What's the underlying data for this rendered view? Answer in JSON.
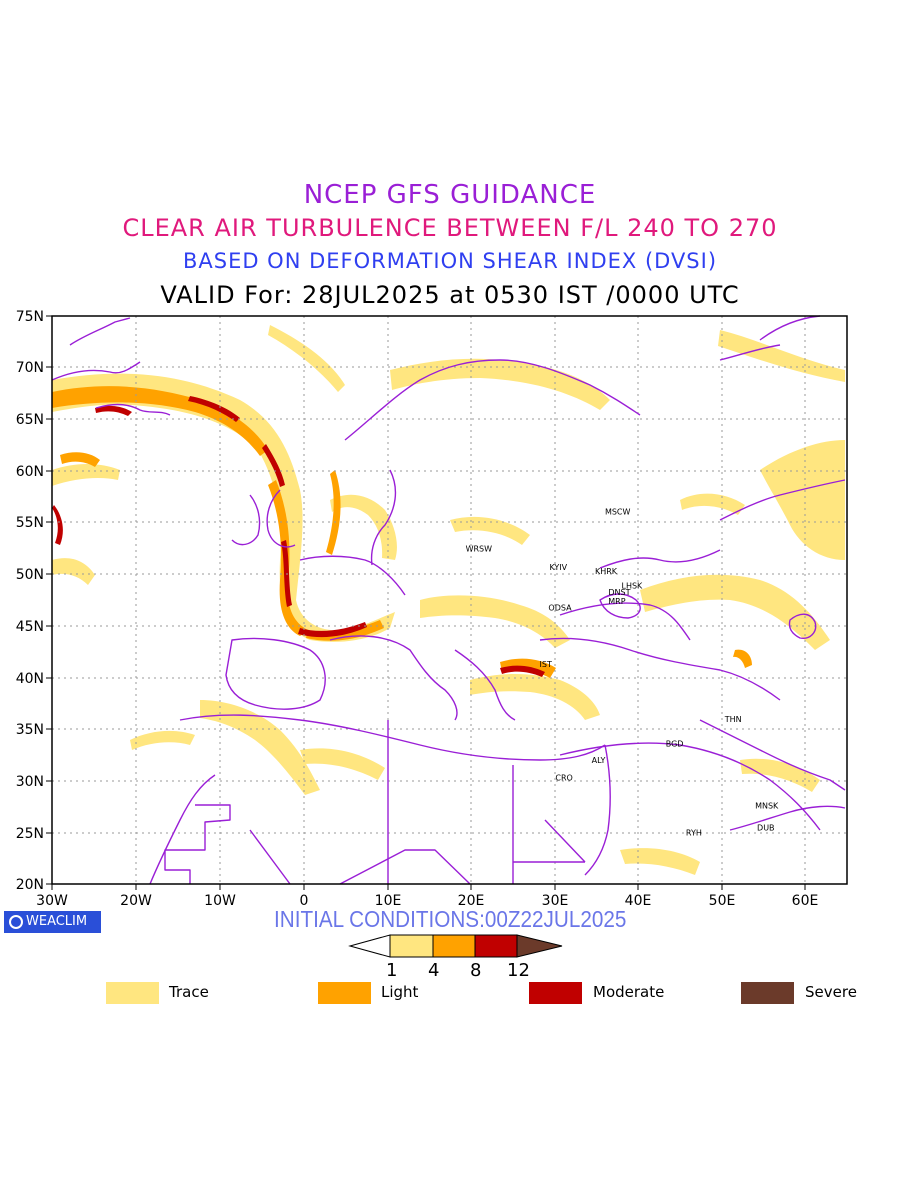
{
  "titles": {
    "line1": "NCEP GFS GUIDANCE",
    "line2": "CLEAR AIR TURBULENCE BETWEEN F/L 240 TO 270",
    "line3": "BASED ON DEFORMATION SHEAR INDEX (DVSI)",
    "line4": "VALID For: 28JUL2025 at 0530 IST /0000 UTC"
  },
  "map": {
    "lon_range": [
      -30,
      65
    ],
    "lat_range": [
      20,
      75
    ],
    "x_ticks": [
      "30W",
      "20W",
      "10W",
      "0",
      "10E",
      "20E",
      "30E",
      "40E",
      "50E",
      "60E"
    ],
    "y_ticks": [
      "75N",
      "70N",
      "65N",
      "60N",
      "55N",
      "50N",
      "45N",
      "40N",
      "35N",
      "30N",
      "25N",
      "20N"
    ],
    "gridlines": true,
    "cities": [
      {
        "code": "MSCW",
        "lon": 37.6,
        "lat": 55.8
      },
      {
        "code": "WRSW",
        "lon": 21.0,
        "lat": 52.2
      },
      {
        "code": "KYIV",
        "lon": 30.5,
        "lat": 50.4
      },
      {
        "code": "KHRK",
        "lon": 36.2,
        "lat": 50.0
      },
      {
        "code": "LHSK",
        "lon": 39.3,
        "lat": 48.6
      },
      {
        "code": "DNST",
        "lon": 37.8,
        "lat": 48.0
      },
      {
        "code": "MRP",
        "lon": 37.5,
        "lat": 47.1
      },
      {
        "code": "ODSA",
        "lon": 30.7,
        "lat": 46.5
      },
      {
        "code": "IST",
        "lon": 29.0,
        "lat": 41.0
      },
      {
        "code": "THN",
        "lon": 51.4,
        "lat": 35.7
      },
      {
        "code": "BGD",
        "lon": 44.4,
        "lat": 33.3
      },
      {
        "code": "ALY",
        "lon": 35.3,
        "lat": 31.7
      },
      {
        "code": "CRO",
        "lon": 31.2,
        "lat": 30.0
      },
      {
        "code": "MNSK",
        "lon": 55.4,
        "lat": 27.3
      },
      {
        "code": "RYH",
        "lon": 46.7,
        "lat": 24.7
      },
      {
        "code": "DUB",
        "lon": 55.3,
        "lat": 25.2
      }
    ]
  },
  "footer": {
    "logo_text": "WEACLIM",
    "initial_conditions": "INITIAL CONDITIONS:00Z22JUL2025"
  },
  "colorbar": {
    "thresholds": [
      "1",
      "4",
      "8",
      "12"
    ],
    "colors": [
      "#ffe680",
      "#ffa200",
      "#c00000",
      "#6b3a2a"
    ]
  },
  "legend": [
    {
      "label": "Trace",
      "color": "#ffe680"
    },
    {
      "label": "Light",
      "color": "#ffa200"
    },
    {
      "label": "Moderate",
      "color": "#c00000"
    },
    {
      "label": "Severe",
      "color": "#6b3a2a"
    }
  ]
}
